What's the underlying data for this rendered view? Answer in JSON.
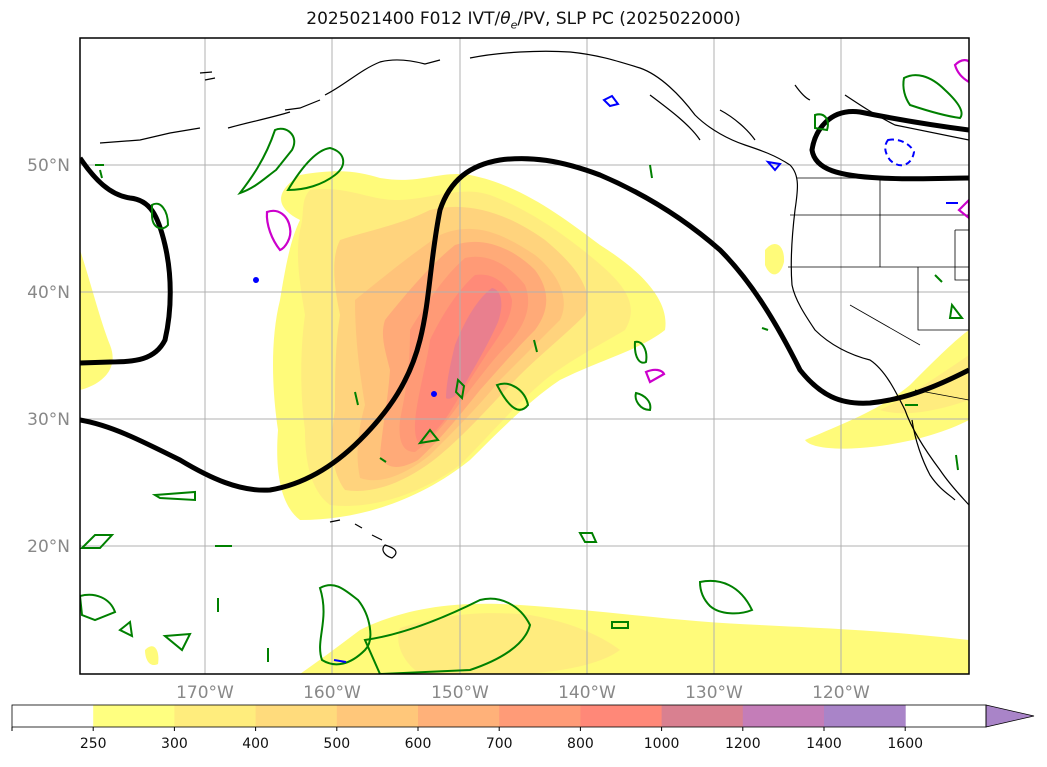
{
  "title": "2025021400 F012 IVT/θe/PV, SLP PC (2025022000)",
  "title_parts": {
    "prefix": "2025021400 F012 IVT/",
    "theta": "θ",
    "sub": "e",
    "suffix": "/PV, SLP PC (2025022000)"
  },
  "map": {
    "lat_labels": [
      "50°N",
      "40°N",
      "30°N",
      "20°N"
    ],
    "lon_labels": [
      "170°W",
      "160°W",
      "150°W",
      "140°W",
      "130°W",
      "120°W"
    ],
    "grid": true,
    "colors": {
      "ivt_250": "#fffb7a",
      "ivt_300": "#ffec7e",
      "ivt_400": "#ffd37d",
      "ivt_500": "#ffc37a",
      "ivt_600": "#ffaa78",
      "ivt_700": "#ff9a76",
      "ivt_800": "#ff8a78",
      "ivt_1000": "#e97f8e",
      "pv_contour": "#008000",
      "theta_contour": "#cc00cc",
      "neg_contour": "#0000ff",
      "slp_contour": "#000000",
      "coastline": "#000000"
    }
  },
  "colorbar": {
    "ticks": [
      "250",
      "300",
      "400",
      "500",
      "600",
      "700",
      "800",
      "1000",
      "1200",
      "1400",
      "1600"
    ],
    "colors": [
      "#ffffff",
      "#ffff80",
      "#ffed7d",
      "#ffdb7c",
      "#ffc77a",
      "#ffb179",
      "#ff9b77",
      "#ff8878",
      "#d98090",
      "#c47db8",
      "#a984c8"
    ],
    "extend": "max"
  }
}
